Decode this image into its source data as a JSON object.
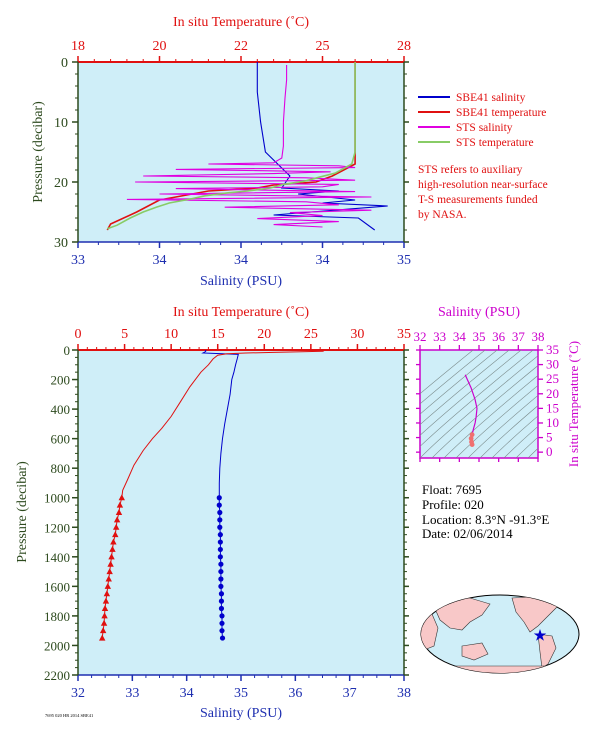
{
  "colors": {
    "panel_bg": "#cfeef8",
    "salinity": "#0000cc",
    "temperature": "#e01010",
    "sts_salinity": "#e000e0",
    "sts_temperature": "#88cc66",
    "axis_dark": "#2d4a1e",
    "ts_magenta": "#cc00cc"
  },
  "legend": {
    "items": [
      "SBE41 salinity",
      "SBE41 temperature",
      "STS salinity",
      "STS temperature"
    ],
    "note_lines": [
      "STS refers to auxiliary",
      "high-resolution near-surface",
      "T-S measurements funded",
      "by NASA."
    ]
  },
  "info": {
    "float": "Float: 7695",
    "profile": "Profile: 020",
    "location": "Location: 8.3°N -91.3°E",
    "date": "Date: 02/06/2014"
  },
  "footer_code": "7695 020 HR 2014 SBE41",
  "chart_data": [
    {
      "type": "line",
      "name": "Near-surface profile",
      "top_axis_label": "In situ Temperature (˚C)",
      "top_ticks": [
        "18",
        "20",
        "22",
        "25",
        "28"
      ],
      "top_lim": [
        18,
        28
      ],
      "xlabel": "Salinity (PSU)",
      "x_ticks": [
        "33",
        "34",
        "34",
        "34",
        "35"
      ],
      "xlim": [
        33,
        35
      ],
      "ylabel": "Pressure (decibar)",
      "y_ticks": [
        0,
        10,
        20,
        30
      ],
      "ylim": [
        30,
        0
      ],
      "series": [
        {
          "name": "SBE41 salinity",
          "color": "#0000cc",
          "points": [
            [
              34.1,
              0
            ],
            [
              34.1,
              5
            ],
            [
              34.12,
              10
            ],
            [
              34.15,
              15
            ],
            [
              34.3,
              19
            ],
            [
              34.25,
              21
            ],
            [
              34.6,
              21.5
            ],
            [
              34.35,
              22
            ],
            [
              34.7,
              23
            ],
            [
              34.5,
              23.5
            ],
            [
              34.9,
              24
            ],
            [
              34.2,
              25.5
            ],
            [
              34.72,
              26
            ],
            [
              34.82,
              28
            ]
          ]
        },
        {
          "name": "SBE41 temperature",
          "color": "#e01010",
          "points": [
            [
              26.5,
              0
            ],
            [
              26.5,
              5
            ],
            [
              26.5,
              10
            ],
            [
              26.5,
              15
            ],
            [
              26.5,
              17
            ],
            [
              25.8,
              19
            ],
            [
              25.3,
              20
            ],
            [
              24.0,
              20.5
            ],
            [
              23.5,
              21
            ],
            [
              22.0,
              21.5
            ],
            [
              21.0,
              22.5
            ],
            [
              20.5,
              23
            ],
            [
              19.8,
              25
            ],
            [
              19.0,
              27
            ],
            [
              18.9,
              28
            ]
          ]
        },
        {
          "name": "STS salinity",
          "color": "#e000e0",
          "points": [
            [
              34.28,
              0.5
            ],
            [
              34.28,
              3
            ],
            [
              34.27,
              6
            ],
            [
              34.26,
              10
            ],
            [
              34.26,
              14
            ],
            [
              34.25,
              16
            ],
            [
              34.2,
              16.8
            ],
            [
              33.8,
              17
            ],
            [
              34.6,
              17.3
            ],
            [
              34.7,
              17.6
            ],
            [
              33.6,
              17.9
            ],
            [
              34.55,
              18.3
            ],
            [
              34.2,
              18.6
            ],
            [
              33.4,
              19.0
            ],
            [
              34.4,
              19.3
            ],
            [
              34.7,
              19.7
            ],
            [
              33.35,
              20.0
            ],
            [
              34.6,
              20.4
            ],
            [
              34.5,
              20.8
            ],
            [
              33.6,
              21.1
            ],
            [
              34.7,
              21.6
            ],
            [
              33.5,
              22.0
            ],
            [
              34.8,
              22.5
            ],
            [
              33.3,
              22.9
            ],
            [
              34.4,
              23.3
            ],
            [
              34.6,
              23.8
            ],
            [
              33.9,
              24.2
            ],
            [
              34.8,
              24.7
            ],
            [
              34.3,
              25.1
            ],
            [
              34.5,
              25.6
            ],
            [
              34.1,
              26.1
            ],
            [
              34.6,
              26.6
            ],
            [
              34.2,
              27.1
            ],
            [
              34.5,
              27.5
            ]
          ]
        },
        {
          "name": "STS temperature",
          "color": "#88cc66",
          "points": [
            [
              26.5,
              0
            ],
            [
              26.5,
              5
            ],
            [
              26.5,
              10
            ],
            [
              26.5,
              15
            ],
            [
              26.4,
              17
            ],
            [
              25.9,
              18.5
            ],
            [
              25.4,
              19.2
            ],
            [
              25.0,
              19.8
            ],
            [
              24.3,
              20.4
            ],
            [
              23.9,
              21.0
            ],
            [
              23.2,
              21.5
            ],
            [
              22.6,
              21.8
            ],
            [
              21.9,
              22.3
            ],
            [
              21.4,
              22.9
            ],
            [
              20.8,
              23.5
            ],
            [
              20.4,
              24.2
            ],
            [
              20.0,
              25.0
            ],
            [
              19.6,
              26.0
            ],
            [
              19.2,
              27.2
            ],
            [
              18.9,
              27.8
            ]
          ]
        }
      ]
    },
    {
      "type": "line",
      "name": "Full-depth profile",
      "top_axis_label": "In situ Temperature (˚C)",
      "top_ticks": [
        0,
        5,
        10,
        15,
        20,
        25,
        30,
        35
      ],
      "top_lim": [
        0,
        35
      ],
      "xlabel": "Salinity (PSU)",
      "x_ticks": [
        32,
        33,
        34,
        35,
        36,
        37,
        38
      ],
      "xlim": [
        32,
        38
      ],
      "ylabel": "Pressure (decibar)",
      "y_ticks": [
        0,
        200,
        400,
        600,
        800,
        1000,
        1200,
        1400,
        1600,
        1800,
        2000,
        2200
      ],
      "ylim": [
        2200,
        0
      ],
      "series": [
        {
          "name": "SBE41 salinity",
          "color": "#0000cc",
          "points": [
            [
              34.35,
              0
            ],
            [
              34.35,
              10
            ],
            [
              34.3,
              20
            ],
            [
              34.95,
              30
            ],
            [
              34.93,
              60
            ],
            [
              34.9,
              100
            ],
            [
              34.87,
              150
            ],
            [
              34.83,
              200
            ],
            [
              34.8,
              300
            ],
            [
              34.75,
              400
            ],
            [
              34.7,
              500
            ],
            [
              34.66,
              600
            ],
            [
              34.63,
              700
            ],
            [
              34.61,
              800
            ],
            [
              34.6,
              900
            ],
            [
              34.6,
              1000
            ]
          ],
          "markers": [
            [
              34.6,
              1000
            ],
            [
              34.6,
              1050
            ],
            [
              34.61,
              1100
            ],
            [
              34.61,
              1150
            ],
            [
              34.61,
              1200
            ],
            [
              34.62,
              1250
            ],
            [
              34.62,
              1300
            ],
            [
              34.62,
              1350
            ],
            [
              34.62,
              1400
            ],
            [
              34.63,
              1450
            ],
            [
              34.63,
              1500
            ],
            [
              34.63,
              1550
            ],
            [
              34.63,
              1600
            ],
            [
              34.64,
              1650
            ],
            [
              34.64,
              1700
            ],
            [
              34.64,
              1750
            ],
            [
              34.65,
              1800
            ],
            [
              34.65,
              1850
            ],
            [
              34.65,
              1900
            ],
            [
              34.66,
              1950
            ]
          ]
        },
        {
          "name": "SBE41 temperature",
          "color": "#e01010",
          "points": [
            [
              26.5,
              0
            ],
            [
              26.3,
              8
            ],
            [
              24.0,
              12
            ],
            [
              21.0,
              16
            ],
            [
              18.0,
              20
            ],
            [
              16.0,
              25
            ],
            [
              15.0,
              35
            ],
            [
              14.5,
              60
            ],
            [
              14.0,
              100
            ],
            [
              13.2,
              150
            ],
            [
              12.0,
              250
            ],
            [
              11.0,
              350
            ],
            [
              10.0,
              450
            ],
            [
              9.0,
              530
            ],
            [
              8.0,
              600
            ],
            [
              7.0,
              680
            ],
            [
              6.0,
              780
            ],
            [
              5.3,
              880
            ],
            [
              4.8,
              950
            ],
            [
              4.7,
              1000
            ]
          ],
          "markers": [
            [
              4.7,
              1000
            ],
            [
              4.5,
              1050
            ],
            [
              4.4,
              1100
            ],
            [
              4.2,
              1150
            ],
            [
              4.1,
              1200
            ],
            [
              4.0,
              1250
            ],
            [
              3.8,
              1300
            ],
            [
              3.7,
              1350
            ],
            [
              3.6,
              1400
            ],
            [
              3.5,
              1450
            ],
            [
              3.4,
              1500
            ],
            [
              3.3,
              1550
            ],
            [
              3.2,
              1600
            ],
            [
              3.1,
              1650
            ],
            [
              3.0,
              1700
            ],
            [
              2.9,
              1750
            ],
            [
              2.85,
              1800
            ],
            [
              2.8,
              1850
            ],
            [
              2.7,
              1900
            ],
            [
              2.6,
              1950
            ]
          ]
        }
      ]
    },
    {
      "type": "line",
      "name": "T-S diagram",
      "top_axis_label": "Salinity (PSU)",
      "x_ticks": [
        32,
        33,
        34,
        35,
        36,
        37,
        38
      ],
      "xlim": [
        32,
        38
      ],
      "ylabel": "In situ Temperature (˚C)",
      "y_ticks": [
        0,
        5,
        10,
        15,
        20,
        25,
        30,
        35
      ],
      "ylim": [
        -2,
        35
      ],
      "series": [
        {
          "name": "T-S",
          "color": "#cc00cc",
          "points": [
            [
              34.3,
              26.5
            ],
            [
              34.4,
              25
            ],
            [
              34.6,
              22
            ],
            [
              34.8,
              18
            ],
            [
              34.9,
              15
            ],
            [
              34.85,
              12
            ],
            [
              34.8,
              10
            ],
            [
              34.72,
              8
            ],
            [
              34.65,
              6
            ],
            [
              34.6,
              4.7
            ],
            [
              34.62,
              3.5
            ],
            [
              34.65,
              2.6
            ]
          ]
        }
      ]
    }
  ]
}
